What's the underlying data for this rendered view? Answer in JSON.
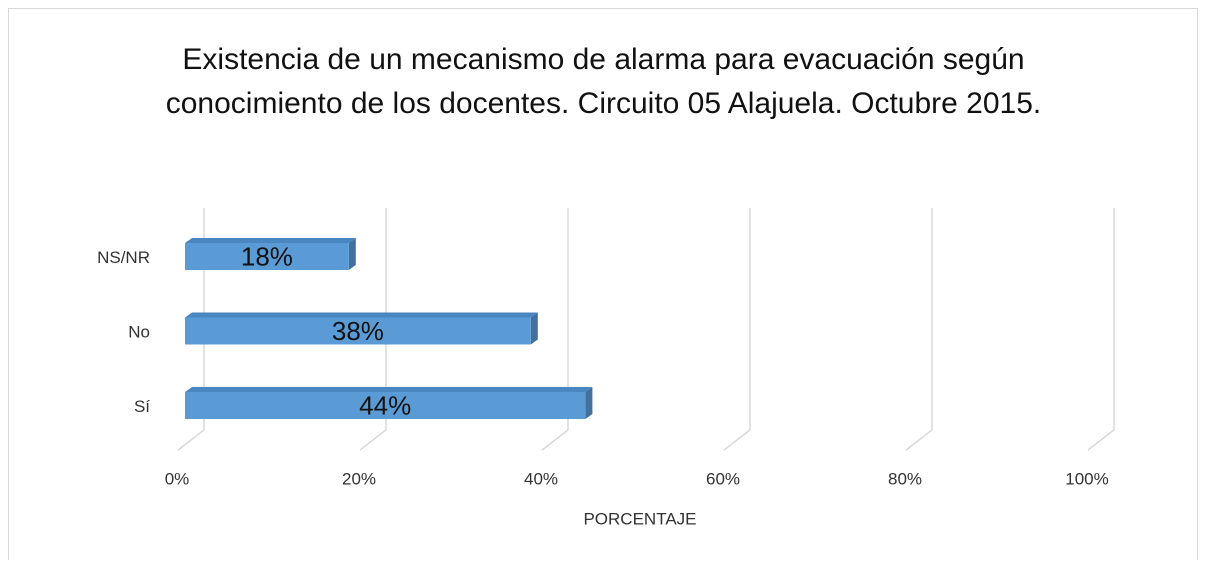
{
  "chart_data": {
    "type": "bar",
    "orientation": "horizontal",
    "title": "Existencia de un mecanismo de alarma para evacuación según conocimiento de los docentes. Circuito 05 Alajuela. Octubre 2015.",
    "categories": [
      "Sí",
      "No",
      "NS/NR"
    ],
    "values": [
      44,
      38,
      18
    ],
    "value_labels": [
      "44%",
      "38%",
      "18%"
    ],
    "color": "#5b9bd5",
    "xlabel": "PORCENTAJE",
    "xlim": [
      0,
      100
    ],
    "xticks": [
      {
        "value": 0,
        "label": "0%"
      },
      {
        "value": 20,
        "label": "20%"
      },
      {
        "value": 40,
        "label": "40%"
      },
      {
        "value": 60,
        "label": "60%"
      },
      {
        "value": 80,
        "label": "80%"
      },
      {
        "value": 100,
        "label": "100%"
      }
    ],
    "grid": true
  }
}
